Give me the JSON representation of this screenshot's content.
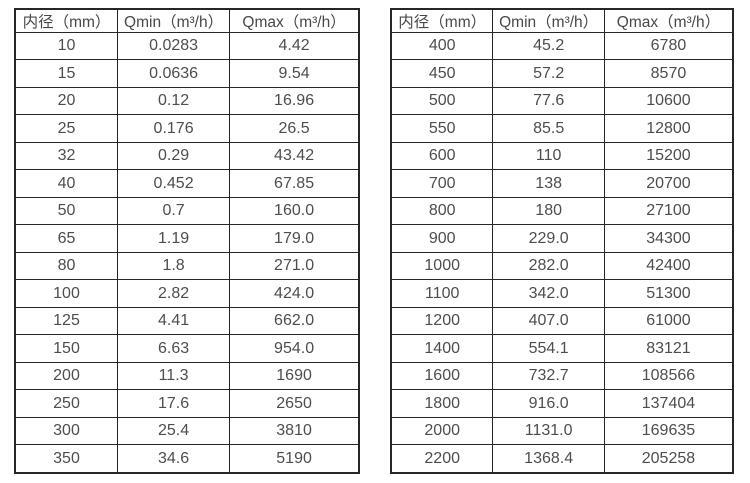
{
  "tables": [
    {
      "name": "flow-rate-table-small-diameters",
      "headers": [
        "内径（mm）",
        "Qmin（m³/h）",
        "Qmax（m³/h）"
      ],
      "rows": [
        [
          "10",
          "0.0283",
          "4.42"
        ],
        [
          "15",
          "0.0636",
          "9.54"
        ],
        [
          "20",
          "0.12",
          "16.96"
        ],
        [
          "25",
          "0.176",
          "26.5"
        ],
        [
          "32",
          "0.29",
          "43.42"
        ],
        [
          "40",
          "0.452",
          "67.85"
        ],
        [
          "50",
          "0.7",
          "160.0"
        ],
        [
          "65",
          "1.19",
          "179.0"
        ],
        [
          "80",
          "1.8",
          "271.0"
        ],
        [
          "100",
          "2.82",
          "424.0"
        ],
        [
          "125",
          "4.41",
          "662.0"
        ],
        [
          "150",
          "6.63",
          "954.0"
        ],
        [
          "200",
          "11.3",
          "1690"
        ],
        [
          "250",
          "17.6",
          "2650"
        ],
        [
          "300",
          "25.4",
          "3810"
        ],
        [
          "350",
          "34.6",
          "5190"
        ]
      ]
    },
    {
      "name": "flow-rate-table-large-diameters",
      "headers": [
        "内径（mm）",
        "Qmin（m³/h）",
        "Qmax（m³/h）"
      ],
      "rows": [
        [
          "400",
          "45.2",
          "6780"
        ],
        [
          "450",
          "57.2",
          "8570"
        ],
        [
          "500",
          "77.6",
          "10600"
        ],
        [
          "550",
          "85.5",
          "12800"
        ],
        [
          "600",
          "110",
          "15200"
        ],
        [
          "700",
          "138",
          "20700"
        ],
        [
          "800",
          "180",
          "27100"
        ],
        [
          "900",
          "229.0",
          "34300"
        ],
        [
          "1000",
          "282.0",
          "42400"
        ],
        [
          "1100",
          "342.0",
          "51300"
        ],
        [
          "1200",
          "407.0",
          "61000"
        ],
        [
          "1400",
          "554.1",
          "83121"
        ],
        [
          "1600",
          "732.7",
          "108566"
        ],
        [
          "1800",
          "916.0",
          "137404"
        ],
        [
          "2000",
          "1131.0",
          "169635"
        ],
        [
          "2200",
          "1368.4",
          "205258"
        ]
      ]
    }
  ],
  "colors": {
    "border": "#262626",
    "text": "#4d4d4d",
    "background": "#ffffff"
  }
}
